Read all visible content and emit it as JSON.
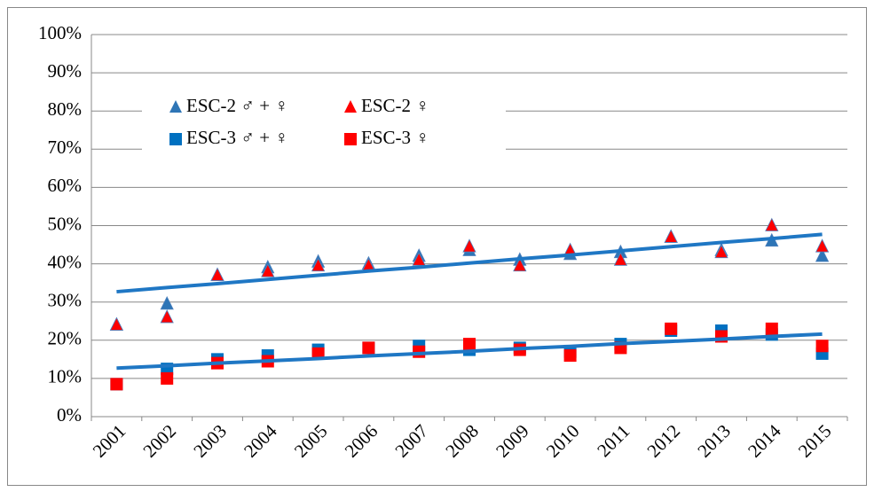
{
  "chart_data": {
    "type": "scatter",
    "categories": [
      "2001",
      "2002",
      "2003",
      "2004",
      "2005",
      "2006",
      "2007",
      "2008",
      "2009",
      "2010",
      "2011",
      "2012",
      "2013",
      "2014",
      "2015"
    ],
    "series": [
      {
        "name": "ESC-2 ♂ + ♀",
        "color": "#2e75b6",
        "marker": "triangle",
        "values": [
          24,
          29.5,
          37,
          39,
          40.5,
          40,
          42,
          43.5,
          41,
          42.5,
          43,
          47,
          43.5,
          46,
          42
        ]
      },
      {
        "name": "ESC-2 ♀",
        "color": "#ff0000",
        "marker": "triangle",
        "values": [
          24,
          26,
          37,
          38,
          39.5,
          39.5,
          41,
          44.5,
          39.5,
          43.5,
          41,
          47,
          43,
          50,
          44.5
        ]
      },
      {
        "name": "ESC-3 ♂ + ♀",
        "color": "#0070c0",
        "marker": "square",
        "values": [
          8.5,
          12.5,
          15,
          16,
          17.5,
          18,
          18.5,
          17.5,
          18,
          17,
          19,
          22.5,
          22.5,
          21.5,
          16.5
        ]
      },
      {
        "name": "ESC-3 ♀",
        "color": "#ff0000",
        "marker": "square",
        "values": [
          8.5,
          10,
          14,
          14.5,
          16.5,
          18,
          17,
          19,
          17.5,
          16,
          18,
          23,
          21,
          23,
          18.5
        ]
      }
    ],
    "trendlines": [
      {
        "color": "#1f77c4",
        "values": [
          32.7,
          33.8,
          34.8,
          35.9,
          37,
          38.1,
          39.1,
          40.2,
          41.3,
          42.3,
          43.4,
          44.5,
          45.6,
          46.6,
          47.7
        ]
      },
      {
        "color": "#1f77c4",
        "values": [
          12.7,
          13.3,
          14,
          14.6,
          15.2,
          15.9,
          16.5,
          17.1,
          17.8,
          18.4,
          19.1,
          19.7,
          20.3,
          21,
          21.6
        ]
      }
    ],
    "ylim": [
      0,
      100
    ],
    "yticks": [
      {
        "value": 0,
        "label": "0%"
      },
      {
        "value": 10,
        "label": "10%"
      },
      {
        "value": 20,
        "label": "20%"
      },
      {
        "value": 30,
        "label": "30%"
      },
      {
        "value": 40,
        "label": "40%"
      },
      {
        "value": 50,
        "label": "50%"
      },
      {
        "value": 60,
        "label": "60%"
      },
      {
        "value": 70,
        "label": "70%"
      },
      {
        "value": 80,
        "label": "80%"
      },
      {
        "value": 90,
        "label": "90%"
      },
      {
        "value": 100,
        "label": "100%"
      }
    ],
    "grid": true,
    "legend": "upper left"
  }
}
